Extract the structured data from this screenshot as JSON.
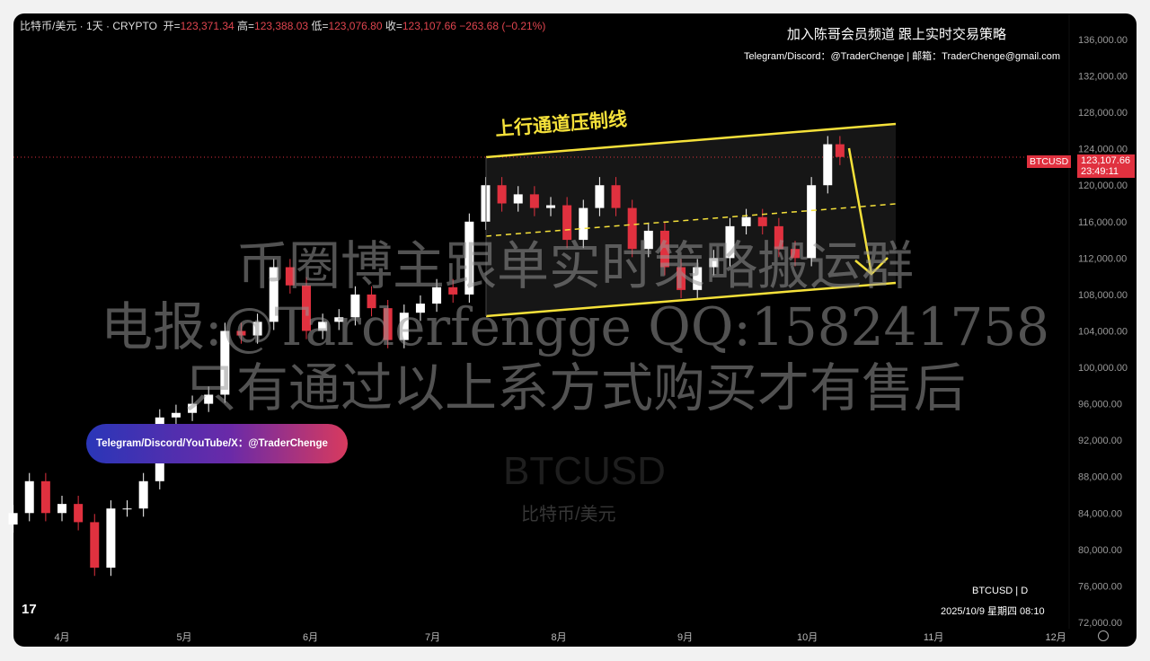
{
  "header": {
    "symbol": "比特币/美元 · 1天 · CRYPTO",
    "open_label": "开=",
    "open": "123,371.34",
    "high_label": "高=",
    "high": "123,388.03",
    "low_label": "低=",
    "low": "123,076.80",
    "close_label": "收=",
    "close": "123,107.66",
    "change": "−263.68 (−0.21%)"
  },
  "promo": {
    "line1": "加入陈哥会员频道  跟上实时交易策略",
    "line2": "Telegram/Discord：@TraderChenge   | 邮箱：TraderChenge@gmail.com",
    "badge": "Telegram/Discord/YouTube/X：@TraderChenge"
  },
  "watermark": {
    "line1": "币圈博主跟单实时策略搬运群",
    "line2": "电报:@Tarderfengge QQ:158241758",
    "line3": "只有通过以上系方式购买才有售后",
    "symbol": "BTCUSD",
    "name": "比特币/美元"
  },
  "annotation": "上行通道压制线",
  "price_tag": {
    "symbol": "BTCUSD",
    "price": "123,107.66",
    "countdown": "23:49:11"
  },
  "footer": {
    "interval": "BTCUSD | D",
    "datetime": "2025/10/9 星期四 08:10",
    "logo": "17"
  },
  "colors": {
    "up": "#ffffff",
    "down": "#e0313f",
    "channel": "#f5e13a",
    "background": "#000000"
  },
  "chart_data": {
    "type": "candlestick",
    "y_ticks": [
      "136,000.00",
      "132,000.00",
      "128,000.00",
      "124,000.00",
      "120,000.00",
      "116,000.00",
      "112,000.00",
      "108,000.00",
      "104,000.00",
      "100,000.00",
      "96,000.00",
      "92,000.00",
      "88,000.00",
      "84,000.00",
      "80,000.00",
      "76,000.00",
      "72,000.00"
    ],
    "ylim": [
      72000,
      136000
    ],
    "x_ticks": [
      "4月",
      "5月",
      "6月",
      "7月",
      "8月",
      "9月",
      "10月",
      "11月",
      "12月"
    ],
    "grid": false,
    "dates": [
      "2025-03-20",
      "2025-03-24",
      "2025-03-28",
      "2025-04-01",
      "2025-04-05",
      "2025-04-09",
      "2025-04-13",
      "2025-04-17",
      "2025-04-21",
      "2025-04-25",
      "2025-04-29",
      "2025-05-03",
      "2025-05-07",
      "2025-05-11",
      "2025-05-15",
      "2025-05-19",
      "2025-05-23",
      "2025-05-27",
      "2025-05-31",
      "2025-06-04",
      "2025-06-08",
      "2025-06-12",
      "2025-06-16",
      "2025-06-20",
      "2025-06-24",
      "2025-06-28",
      "2025-07-02",
      "2025-07-06",
      "2025-07-10",
      "2025-07-14",
      "2025-07-18",
      "2025-07-22",
      "2025-07-26",
      "2025-07-30",
      "2025-08-03",
      "2025-08-07",
      "2025-08-11",
      "2025-08-15",
      "2025-08-19",
      "2025-08-23",
      "2025-08-27",
      "2025-08-31",
      "2025-09-04",
      "2025-09-08",
      "2025-09-12",
      "2025-09-16",
      "2025-09-20",
      "2025-09-24",
      "2025-09-28",
      "2025-10-02",
      "2025-10-06",
      "2025-10-09"
    ],
    "close": [
      84000,
      87500,
      84000,
      85000,
      83000,
      78000,
      84500,
      84500,
      87500,
      94500,
      95000,
      96000,
      97000,
      104000,
      103500,
      105000,
      111000,
      109000,
      104000,
      105000,
      105500,
      108000,
      106500,
      103000,
      106000,
      107000,
      108800,
      108000,
      116000,
      120000,
      118000,
      119000,
      117500,
      117800,
      114000,
      117500,
      120000,
      117500,
      113000,
      115000,
      111000,
      108500,
      111000,
      112000,
      115500,
      116500,
      115500,
      113000,
      112000,
      120000,
      124500,
      123107.66
    ],
    "last_price": 123107.66
  }
}
